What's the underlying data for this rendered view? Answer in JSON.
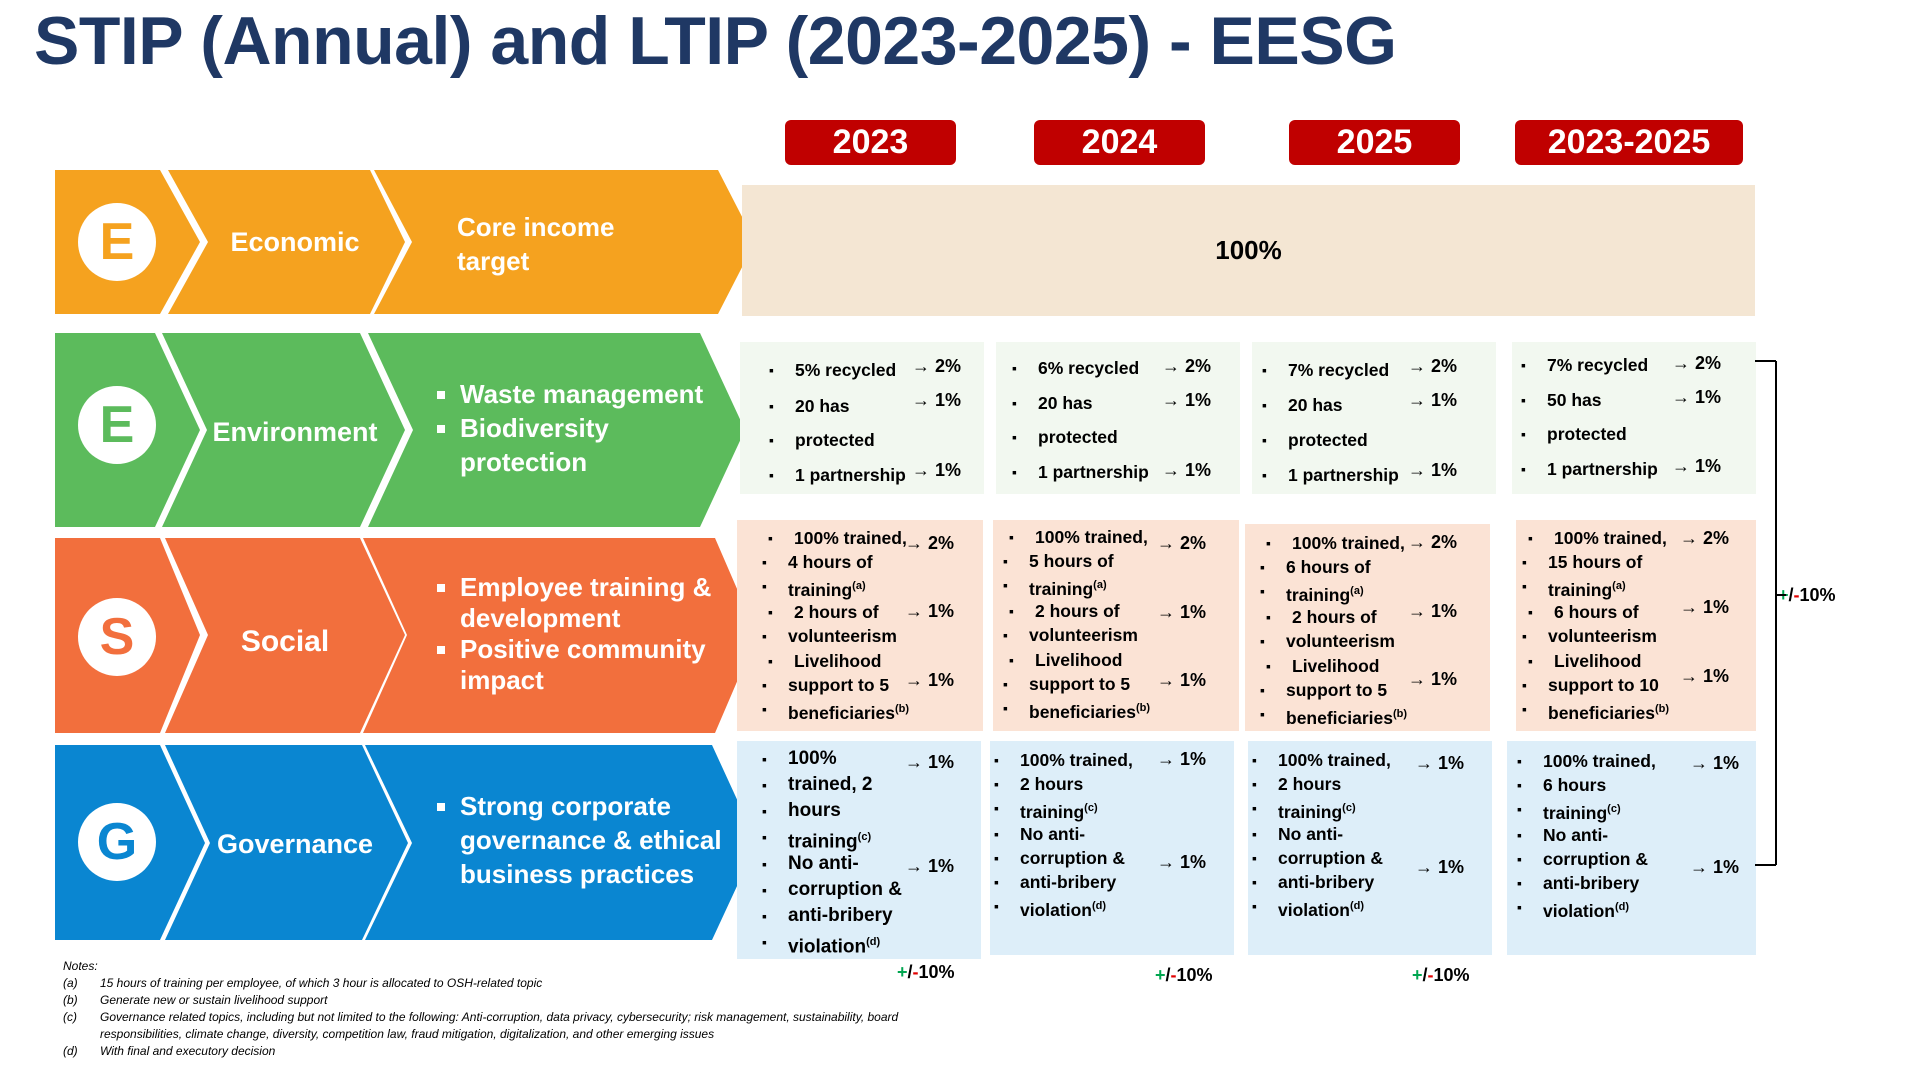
{
  "title": "STIP (Annual) and LTIP (2023-2025) - EESG",
  "years": [
    "2023",
    "2024",
    "2025",
    "2023-2025"
  ],
  "colors": {
    "title": "#1f3864",
    "year_box": "#c00000",
    "economic": "#f5a21f",
    "environment": "#5cbb5c",
    "social": "#f26f3d",
    "governance": "#0a86d1",
    "economic_bg": "#f4e6d3",
    "environment_bg": "#f2f8f0",
    "social_bg": "#fbe3d5",
    "governance_bg": "#ddeef9"
  },
  "rows": {
    "economic": {
      "letter": "E",
      "label": "Economic",
      "category_line1": "Core income",
      "category_line2": "target",
      "value": "100%"
    },
    "environment": {
      "letter": "E",
      "label": "Environment",
      "category": [
        "Waste management",
        "Biodiversity",
        "protection"
      ]
    },
    "social": {
      "letter": "S",
      "label": "Social",
      "category": [
        "Employee training &",
        "development",
        "Positive community",
        "impact"
      ]
    },
    "governance": {
      "letter": "G",
      "label": "Governance",
      "category": [
        "Strong corporate",
        "governance & ethical",
        "business practices"
      ]
    }
  },
  "env_cells": [
    {
      "recycled": "5% recycled",
      "has": "20 has",
      "protected": "protected",
      "partnership": "1 partnership"
    },
    {
      "recycled": "6% recycled",
      "has": "20 has",
      "protected": "protected",
      "partnership": "1 partnership"
    },
    {
      "recycled": "7% recycled",
      "has": "20 has",
      "protected": "protected",
      "partnership": "1 partnership"
    },
    {
      "recycled": "7% recycled",
      "has": "50 has",
      "protected": "protected",
      "partnership": "1 partnership"
    }
  ],
  "social_cells": [
    {
      "trained": "100% trained,",
      "hours": "4 hours of",
      "training": "training",
      "vol1": "2 hours of",
      "vol2": "volunteerism",
      "liv1": "Livelihood",
      "liv2": "support to 5",
      "liv3": "beneficiaries"
    },
    {
      "trained": "100% trained,",
      "hours": "5 hours of",
      "training": "training",
      "vol1": "2 hours of",
      "vol2": "volunteerism",
      "liv1": "Livelihood",
      "liv2": "support to 5",
      "liv3": "beneficiaries"
    },
    {
      "trained": "100% trained,",
      "hours": "6 hours of",
      "training": "training",
      "vol1": "2 hours of",
      "vol2": "volunteerism",
      "liv1": "Livelihood",
      "liv2": "support to 5",
      "liv3": "beneficiaries"
    },
    {
      "trained": "100% trained,",
      "hours": "15 hours of",
      "training": "training",
      "vol1": "6 hours of",
      "vol2": "volunteerism",
      "liv1": "Livelihood",
      "liv2": "support to 10",
      "liv3": "beneficiaries"
    }
  ],
  "gov_cell0": {
    "l1": "100%",
    "l2": "trained, 2",
    "l3": "hours",
    "l4": "training",
    "m1": "No anti-",
    "m2": "corruption &",
    "m3": "anti-bribery",
    "m4": "violation"
  },
  "gov_cells": [
    {
      "l1": "100% trained,",
      "l2": "2 hours",
      "l3": "training",
      "m1": "No anti-",
      "m2": "corruption &",
      "m3": "anti-bribery",
      "m4": "violation"
    },
    {
      "l1": "100% trained,",
      "l2": "2 hours",
      "l3": "training",
      "m1": "No anti-",
      "m2": "corruption &",
      "m3": "anti-bribery",
      "m4": "violation"
    },
    {
      "l1": "100% trained,",
      "l2": "6 hours",
      "l3": "training",
      "m1": "No anti-",
      "m2": "corruption &",
      "m3": "anti-bribery",
      "m4": "violation"
    }
  ],
  "weights": {
    "w2": "2%",
    "w1": "1%"
  },
  "arrow": "→",
  "note_refs": {
    "a": "(a)",
    "b": "(b)",
    "c": "(c)",
    "d": "(d)"
  },
  "modifier": {
    "plus": "+",
    "slash": "/",
    "minus": "-",
    "value": "10%"
  },
  "notes": {
    "heading": "Notes:",
    "items": [
      {
        "label": "(a)",
        "text": "15 hours of training per employee, of which 3 hour is allocated to OSH-related topic"
      },
      {
        "label": "(b)",
        "text": "Generate new or sustain livelihood support"
      },
      {
        "label": "(c)",
        "text": "Governance related topics, including but not limited to the following: Anti-corruption, data privacy, cybersecurity; risk management, sustainability, board",
        "text2": "responsibilities, climate change, diversity, competition law, fraud mitigation, digitalization, and other emerging issues"
      },
      {
        "label": "(d)",
        "text": "With final and executory decision"
      }
    ]
  }
}
